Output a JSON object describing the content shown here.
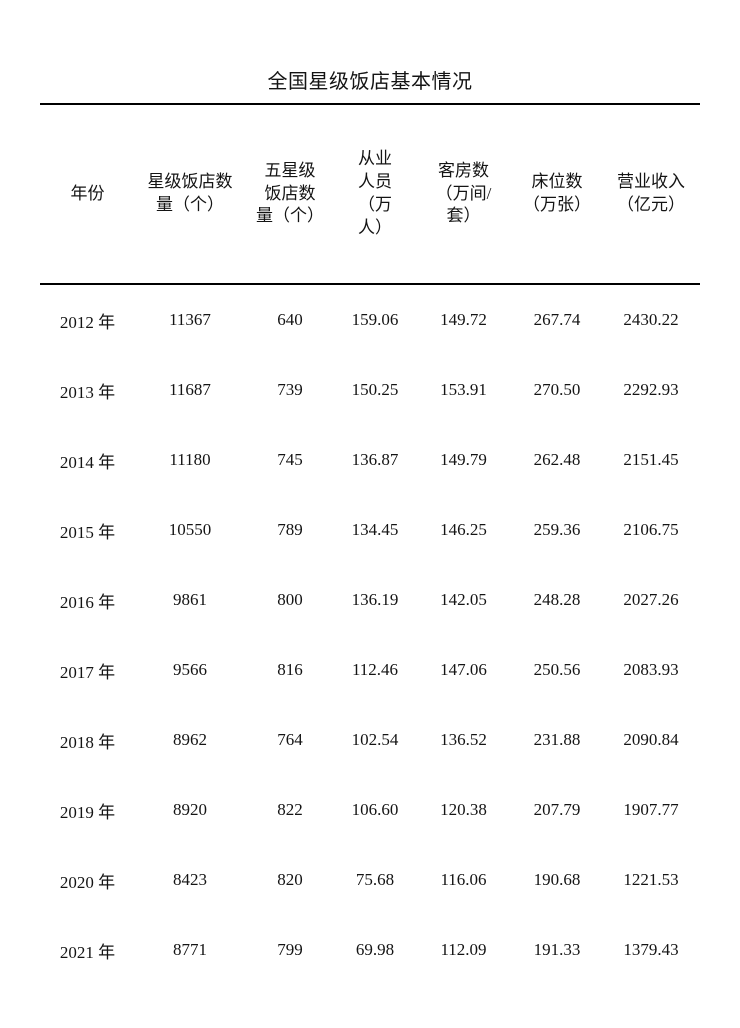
{
  "title": "全国星级饭店基本情况",
  "table": {
    "columns": [
      {
        "label": "年份"
      },
      {
        "label": "星级饭店数\n量（个）"
      },
      {
        "label": "五星级\n饭店数\n量（个）"
      },
      {
        "label": "从业\n人员\n（万\n人）"
      },
      {
        "label": "客房数\n（万间/\n套）"
      },
      {
        "label": "床位数\n（万张）"
      },
      {
        "label": "营业收入\n（亿元）"
      }
    ],
    "rows": [
      {
        "year": "2012 年",
        "values": [
          "11367",
          "640",
          "159.06",
          "149.72",
          "267.74",
          "2430.22"
        ]
      },
      {
        "year": "2013 年",
        "values": [
          "11687",
          "739",
          "150.25",
          "153.91",
          "270.50",
          "2292.93"
        ]
      },
      {
        "year": "2014 年",
        "values": [
          "11180",
          "745",
          "136.87",
          "149.79",
          "262.48",
          "2151.45"
        ]
      },
      {
        "year": "2015 年",
        "values": [
          "10550",
          "789",
          "134.45",
          "146.25",
          "259.36",
          "2106.75"
        ]
      },
      {
        "year": "2016 年",
        "values": [
          "9861",
          "800",
          "136.19",
          "142.05",
          "248.28",
          "2027.26"
        ]
      },
      {
        "year": "2017 年",
        "values": [
          "9566",
          "816",
          "112.46",
          "147.06",
          "250.56",
          "2083.93"
        ]
      },
      {
        "year": "2018 年",
        "values": [
          "8962",
          "764",
          "102.54",
          "136.52",
          "231.88",
          "2090.84"
        ]
      },
      {
        "year": "2019 年",
        "values": [
          "8920",
          "822",
          "106.60",
          "120.38",
          "207.79",
          "1907.77"
        ]
      },
      {
        "year": "2020 年",
        "values": [
          "8423",
          "820",
          "75.68",
          "116.06",
          "190.68",
          "1221.53"
        ]
      },
      {
        "year": "2021 年",
        "values": [
          "8771",
          "799",
          "69.98",
          "112.09",
          "191.33",
          "1379.43"
        ]
      }
    ]
  }
}
